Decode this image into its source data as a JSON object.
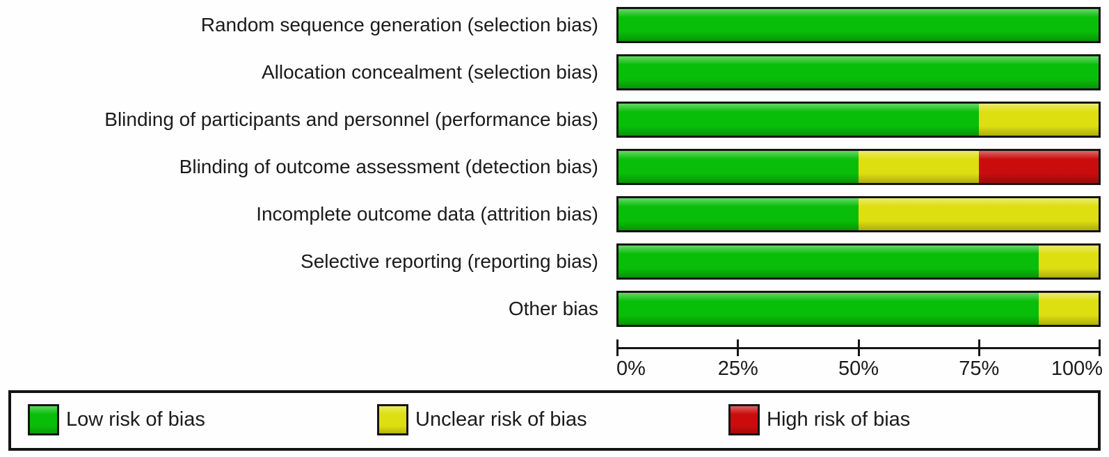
{
  "chart_data": {
    "type": "bar",
    "orientation": "horizontal",
    "stacked": true,
    "unit": "percent-of-studies",
    "title": "",
    "xlabel": "",
    "ylabel": "",
    "xlim": [
      0,
      100
    ],
    "grid": false,
    "legend_position": "bottom",
    "categories": [
      "Random sequence generation (selection bias)",
      "Allocation concealment (selection bias)",
      "Blinding of participants and personnel (performance bias)",
      "Blinding of outcome assessment (detection bias)",
      "Incomplete outcome data (attrition bias)",
      "Selective reporting (reporting bias)",
      "Other bias"
    ],
    "series": [
      {
        "key": "low",
        "name": "Low risk of bias",
        "color": "#09be09",
        "values": [
          100,
          100,
          75,
          50,
          50,
          87.5,
          87.5
        ]
      },
      {
        "key": "unclear",
        "name": "Unclear risk of bias",
        "color": "#dedf10",
        "values": [
          0,
          0,
          25,
          25,
          50,
          12.5,
          12.5
        ]
      },
      {
        "key": "high",
        "name": "High risk of bias",
        "color": "#ca0c0c",
        "values": [
          0,
          0,
          0,
          25,
          0,
          0,
          0
        ]
      }
    ],
    "x_ticks": [
      "0%",
      "25%",
      "50%",
      "75%",
      "100%"
    ]
  },
  "legend": {
    "items": [
      {
        "key": "low",
        "label": "Low risk of bias",
        "color": "#09be09"
      },
      {
        "key": "unclear",
        "label": "Unclear risk of bias",
        "color": "#dedf10"
      },
      {
        "key": "high",
        "label": "High risk of bias",
        "color": "#ca0c0c"
      }
    ]
  }
}
